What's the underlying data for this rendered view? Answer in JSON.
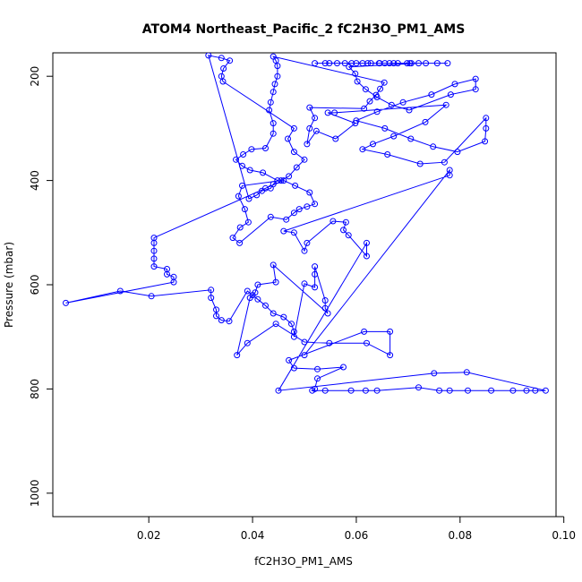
{
  "chart_data": {
    "type": "scatter",
    "title": "ATOM4 Northeast_Pacific_2 fC2H3O_PM1_AMS",
    "xlabel": "fC2H3O_PM1_AMS",
    "ylabel": "Pressure (mbar)",
    "xlim": [
      0.0015,
      0.0985
    ],
    "ylim": [
      1045,
      155
    ],
    "y_reversed": true,
    "x_ticks": [
      0.02,
      0.04,
      0.06,
      0.08,
      0.1
    ],
    "x_tick_labels": [
      "0.02",
      "0.04",
      "0.06",
      "0.08",
      "0.10"
    ],
    "y_ticks": [
      200,
      400,
      600,
      800,
      1000
    ],
    "y_tick_labels": [
      "200",
      "400",
      "600",
      "800",
      "1000"
    ],
    "grid": false,
    "marker": "open-circle",
    "connected": true,
    "color": "#0000ff",
    "series": [
      {
        "points": [
          [
            0.0664,
            175
          ],
          [
            0.0706,
            175
          ],
          [
            0.0756,
            175
          ],
          [
            0.0645,
            175
          ],
          [
            0.0591,
            175
          ],
          [
            0.0612,
            175
          ],
          [
            0.0628,
            175
          ],
          [
            0.0655,
            175
          ],
          [
            0.068,
            175
          ],
          [
            0.0703,
            175
          ],
          [
            0.0734,
            175
          ],
          [
            0.0776,
            175
          ],
          [
            0.0563,
            175
          ],
          [
            0.0548,
            175
          ],
          [
            0.052,
            175
          ],
          [
            0.054,
            175
          ],
          [
            0.0578,
            175
          ],
          [
            0.06,
            175
          ],
          [
            0.0622,
            175
          ],
          [
            0.0644,
            175
          ],
          [
            0.0672,
            175
          ],
          [
            0.0698,
            175
          ],
          [
            0.072,
            175
          ],
          [
            0.0586,
            182
          ],
          [
            0.0598,
            195
          ],
          [
            0.0602,
            210
          ],
          [
            0.0618,
            225
          ],
          [
            0.064,
            240
          ],
          [
            0.0668,
            255
          ],
          [
            0.0702,
            265
          ],
          [
            0.0782,
            235
          ],
          [
            0.083,
            225
          ],
          [
            0.083,
            205
          ],
          [
            0.079,
            215
          ],
          [
            0.0745,
            235
          ],
          [
            0.069,
            250
          ],
          [
            0.064,
            268
          ],
          [
            0.06,
            285
          ],
          [
            0.0655,
            300
          ],
          [
            0.0705,
            320
          ],
          [
            0.0748,
            335
          ],
          [
            0.0795,
            345
          ],
          [
            0.0848,
            325
          ],
          [
            0.085,
            300
          ],
          [
            0.085,
            280
          ],
          [
            0.077,
            365
          ],
          [
            0.0723,
            368
          ],
          [
            0.066,
            350
          ],
          [
            0.0612,
            340
          ],
          [
            0.0632,
            330
          ],
          [
            0.0672,
            315
          ],
          [
            0.0733,
            288
          ],
          [
            0.0773,
            255
          ],
          [
            0.0558,
            270
          ],
          [
            0.0545,
            270
          ],
          [
            0.0598,
            290
          ],
          [
            0.056,
            320
          ],
          [
            0.0523,
            305
          ],
          [
            0.0505,
            330
          ],
          [
            0.051,
            300
          ],
          [
            0.052,
            280
          ],
          [
            0.051,
            260
          ],
          [
            0.0615,
            262
          ],
          [
            0.0626,
            248
          ],
          [
            0.0638,
            236
          ],
          [
            0.0646,
            224
          ],
          [
            0.0654,
            212
          ],
          [
            0.044,
            162
          ],
          [
            0.0445,
            170
          ],
          [
            0.0448,
            180
          ],
          [
            0.0448,
            200
          ],
          [
            0.0443,
            215
          ],
          [
            0.044,
            230
          ],
          [
            0.0435,
            250
          ],
          [
            0.0432,
            265
          ],
          [
            0.044,
            290
          ],
          [
            0.044,
            310
          ],
          [
            0.0425,
            338
          ],
          [
            0.0398,
            340
          ],
          [
            0.0382,
            350
          ],
          [
            0.0368,
            360
          ],
          [
            0.038,
            372
          ],
          [
            0.0395,
            380
          ],
          [
            0.042,
            385
          ],
          [
            0.0448,
            400
          ],
          [
            0.044,
            407
          ],
          [
            0.0435,
            415
          ],
          [
            0.0418,
            420
          ],
          [
            0.0408,
            428
          ],
          [
            0.0393,
            435
          ],
          [
            0.0315,
            160
          ],
          [
            0.034,
            165
          ],
          [
            0.0356,
            170
          ],
          [
            0.0344,
            185
          ],
          [
            0.034,
            200
          ],
          [
            0.0343,
            210
          ],
          [
            0.048,
            300
          ],
          [
            0.0468,
            320
          ],
          [
            0.048,
            345
          ],
          [
            0.05,
            360
          ],
          [
            0.0485,
            375
          ],
          [
            0.047,
            392
          ],
          [
            0.0455,
            400
          ],
          [
            0.038,
            410
          ],
          [
            0.0373,
            430
          ],
          [
            0.0385,
            455
          ],
          [
            0.0392,
            480
          ],
          [
            0.0376,
            490
          ],
          [
            0.0362,
            510
          ],
          [
            0.0375,
            520
          ],
          [
            0.0435,
            470
          ],
          [
            0.0465,
            475
          ],
          [
            0.048,
            462
          ],
          [
            0.049,
            455
          ],
          [
            0.0505,
            450
          ],
          [
            0.052,
            445
          ],
          [
            0.051,
            423
          ],
          [
            0.0482,
            410
          ],
          [
            0.046,
            400
          ],
          [
            0.0425,
            415
          ],
          [
            0.021,
            510
          ],
          [
            0.021,
            520
          ],
          [
            0.021,
            535
          ],
          [
            0.021,
            550
          ],
          [
            0.021,
            565
          ],
          [
            0.0235,
            570
          ],
          [
            0.0235,
            580
          ],
          [
            0.0248,
            585
          ],
          [
            0.0248,
            595
          ],
          [
            0.004,
            635
          ],
          [
            0.0145,
            612
          ],
          [
            0.0205,
            622
          ],
          [
            0.032,
            610
          ],
          [
            0.032,
            625
          ],
          [
            0.033,
            648
          ],
          [
            0.033,
            660
          ],
          [
            0.034,
            668
          ],
          [
            0.0355,
            670
          ],
          [
            0.039,
            612
          ],
          [
            0.04,
            620
          ],
          [
            0.041,
            628
          ],
          [
            0.0425,
            640
          ],
          [
            0.044,
            655
          ],
          [
            0.046,
            662
          ],
          [
            0.0475,
            675
          ],
          [
            0.048,
            690
          ],
          [
            0.048,
            700
          ],
          [
            0.05,
            598
          ],
          [
            0.052,
            605
          ],
          [
            0.052,
            580
          ],
          [
            0.052,
            565
          ],
          [
            0.054,
            630
          ],
          [
            0.054,
            645
          ],
          [
            0.0545,
            655
          ],
          [
            0.044,
            562
          ],
          [
            0.0445,
            595
          ],
          [
            0.041,
            600
          ],
          [
            0.0405,
            615
          ],
          [
            0.0395,
            625
          ],
          [
            0.037,
            735
          ],
          [
            0.039,
            712
          ],
          [
            0.0445,
            675
          ],
          [
            0.05,
            710
          ],
          [
            0.0548,
            712
          ],
          [
            0.062,
            712
          ],
          [
            0.0665,
            735
          ],
          [
            0.0665,
            690
          ],
          [
            0.0615,
            690
          ],
          [
            0.047,
            745
          ],
          [
            0.048,
            760
          ],
          [
            0.0525,
            762
          ],
          [
            0.0575,
            758
          ],
          [
            0.0525,
            780
          ],
          [
            0.052,
            800
          ],
          [
            0.0515,
            803
          ],
          [
            0.054,
            803
          ],
          [
            0.059,
            803
          ],
          [
            0.0618,
            803
          ],
          [
            0.064,
            803
          ],
          [
            0.072,
            797
          ],
          [
            0.076,
            803
          ],
          [
            0.078,
            803
          ],
          [
            0.0815,
            803
          ],
          [
            0.086,
            803
          ],
          [
            0.0902,
            803
          ],
          [
            0.0928,
            803
          ],
          [
            0.0945,
            803
          ],
          [
            0.0965,
            803
          ],
          [
            0.0813,
            768
          ],
          [
            0.075,
            770
          ],
          [
            0.045,
            803
          ],
          [
            0.062,
            520
          ],
          [
            0.062,
            545
          ],
          [
            0.0585,
            505
          ],
          [
            0.0575,
            495
          ],
          [
            0.058,
            480
          ],
          [
            0.0555,
            478
          ],
          [
            0.0505,
            520
          ],
          [
            0.05,
            535
          ],
          [
            0.048,
            500
          ],
          [
            0.046,
            497
          ],
          [
            0.078,
            390
          ],
          [
            0.078,
            380
          ],
          [
            0.05,
            735
          ]
        ]
      }
    ]
  }
}
